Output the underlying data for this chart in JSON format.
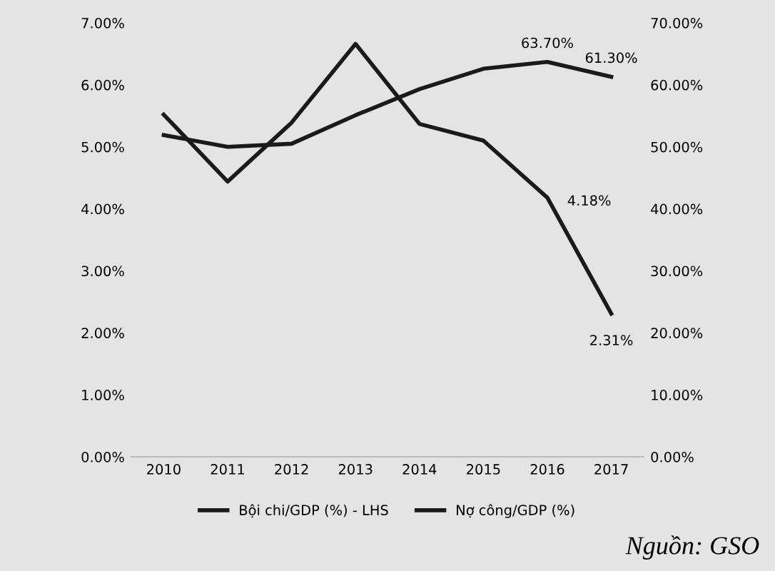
{
  "chart_data": {
    "type": "line",
    "categories": [
      "2010",
      "2011",
      "2012",
      "2013",
      "2014",
      "2015",
      "2016",
      "2017"
    ],
    "series": [
      {
        "name": "Bội chi/GDP (%) - LHS",
        "color": "#1a1a1a",
        "values": [
          5.52,
          4.44,
          5.39,
          6.66,
          5.37,
          5.1,
          4.18,
          2.31
        ],
        "value_labels": [
          null,
          null,
          null,
          null,
          null,
          null,
          "4.18%",
          "2.31%"
        ]
      },
      {
        "name": "Nợ công/GDP (%)",
        "color": "#1a1a1a",
        "axis": "y2",
        "values": [
          51.9,
          50.0,
          50.5,
          55.1,
          59.3,
          62.6,
          63.7,
          61.3
        ],
        "value_labels": [
          null,
          null,
          null,
          null,
          null,
          null,
          "63.70%",
          "61.30%"
        ]
      }
    ],
    "ylim": [
      0,
      7
    ],
    "yticks": [
      {
        "value": 0,
        "label": "0.00%"
      },
      {
        "value": 1,
        "label": "1.00%"
      },
      {
        "value": 2,
        "label": "2.00%"
      },
      {
        "value": 3,
        "label": "3.00%"
      },
      {
        "value": 4,
        "label": "4.00%"
      },
      {
        "value": 5,
        "label": "5.00%"
      },
      {
        "value": 6,
        "label": "6.00%"
      },
      {
        "value": 7,
        "label": "7.00%"
      }
    ],
    "y2lim": [
      0,
      70
    ],
    "y2ticks": [
      {
        "value": 0,
        "label": "0.00%"
      },
      {
        "value": 10,
        "label": "10.00%"
      },
      {
        "value": 20,
        "label": "20.00%"
      },
      {
        "value": 30,
        "label": "30.00%"
      },
      {
        "value": 40,
        "label": "40.00%"
      },
      {
        "value": 50,
        "label": "50.00%"
      },
      {
        "value": 60,
        "label": "60.00%"
      },
      {
        "value": 70,
        "label": "70.00%"
      }
    ],
    "grid": false,
    "legend": "bottom",
    "marker": "none",
    "line_style": "solid",
    "annotations": [
      "Nguồn: GSO"
    ]
  }
}
